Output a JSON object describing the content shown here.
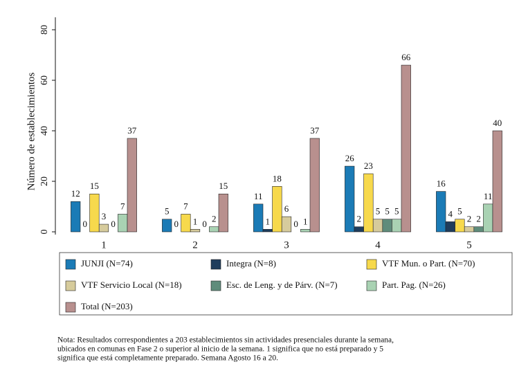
{
  "chart_data": {
    "type": "bar",
    "ylabel": "Número de establecimientos",
    "categories": [
      "1",
      "2",
      "3",
      "4",
      "5"
    ],
    "series": [
      {
        "name": "JUNJI (N=74)",
        "color": "#1b7bb6",
        "values": [
          12,
          5,
          11,
          26,
          16
        ]
      },
      {
        "name": "Integra (N=8)",
        "color": "#1f3d5c",
        "values": [
          0,
          0,
          1,
          2,
          4
        ]
      },
      {
        "name": "VTF Mun. o Part. (N=70)",
        "color": "#f7d94c",
        "values": [
          15,
          7,
          18,
          23,
          5
        ]
      },
      {
        "name": "VTF Servicio Local (N=18)",
        "color": "#d6cb9c",
        "values": [
          3,
          1,
          6,
          5,
          2
        ]
      },
      {
        "name": "Esc. de Leng. y de Párv. (N=7)",
        "color": "#5f8c7b",
        "values": [
          0,
          0,
          0,
          5,
          2
        ]
      },
      {
        "name": "Part. Pag. (N=26)",
        "color": "#a9d2b3",
        "values": [
          7,
          2,
          1,
          5,
          11
        ]
      },
      {
        "name": "Total (N=203)",
        "color": "#b8908e",
        "values": [
          37,
          15,
          37,
          66,
          40
        ]
      }
    ],
    "ylim": [
      0,
      80
    ],
    "yticks": [
      0,
      20,
      40,
      60,
      80
    ],
    "note": [
      "Nota: Resultados correspondientes a 203 establecimientos sin actividades presenciales durante la semana,",
      "ubicados en comunas en Fase 2 o superior al inicio de la semana. 1 significa que no está preparado y 5",
      "significa que está completamente preparado. Semana Agosto 16 a 20."
    ]
  }
}
